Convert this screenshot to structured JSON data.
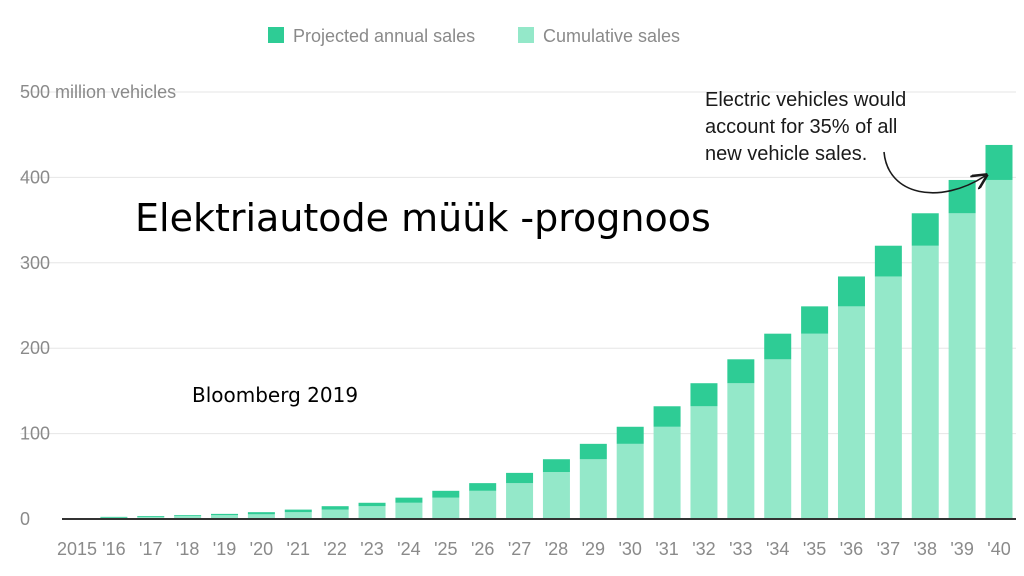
{
  "overlay": {
    "title": "Elektriautode müük -prognoos",
    "source": "Bloomberg 2019"
  },
  "colors": {
    "projected_annual": "#2ecc95",
    "cumulative": "#94e8c9",
    "grid": "#e6e6e6",
    "axis": "#333333",
    "tick_text": "#8a8a8a"
  },
  "chart_data": {
    "type": "bar",
    "stacked": true,
    "ylabel": "million vehicles",
    "ylim": [
      0,
      500
    ],
    "yticks": [
      {
        "value": 500,
        "label": "500 million vehicles"
      },
      {
        "value": 400,
        "label": "400"
      },
      {
        "value": 300,
        "label": "300"
      },
      {
        "value": 200,
        "label": "200"
      },
      {
        "value": 100,
        "label": "100"
      },
      {
        "value": 0,
        "label": "0"
      }
    ],
    "grid": true,
    "legend": {
      "placement": "top",
      "entries": [
        "Projected annual sales",
        "Cumulative sales"
      ]
    },
    "categories": [
      "2015",
      "'16",
      "'17",
      "'18",
      "'19",
      "'20",
      "'21",
      "'22",
      "'23",
      "'24",
      "'25",
      "'26",
      "'27",
      "'28",
      "'29",
      "'30",
      "'31",
      "'32",
      "'33",
      "'34",
      "'35",
      "'36",
      "'37",
      "'38",
      "'39",
      "'40"
    ],
    "series": [
      {
        "name": "Cumulative sales",
        "values": [
          0.5,
          1.5,
          2.5,
          3.5,
          4.5,
          5.5,
          8,
          11,
          15,
          19,
          25,
          33,
          42,
          55,
          70,
          88,
          108,
          132,
          159,
          187,
          217,
          249,
          284,
          320,
          358,
          397
        ]
      },
      {
        "name": "Projected annual sales",
        "values": [
          0.5,
          1,
          1,
          1,
          1.5,
          2.5,
          3,
          4,
          4,
          6,
          8,
          9,
          12,
          15,
          18,
          20,
          24,
          27,
          28,
          30,
          32,
          35,
          36,
          38,
          39,
          41
        ]
      }
    ],
    "annotation": {
      "text_lines": [
        "Electric vehicles would",
        "account for 35% of all",
        "new vehicle sales."
      ],
      "points_to": "'40"
    }
  }
}
